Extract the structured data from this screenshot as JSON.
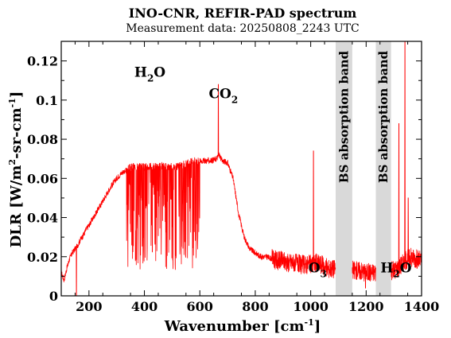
{
  "chart_data": {
    "type": "line",
    "title": "INO-CNR, REFIR-PAD spectrum",
    "subtitle": "Measurement data: 20250808_2243 UTC",
    "xlabel": {
      "main": "Wavenumber [cm",
      "sup": "-1",
      "tail": "]"
    },
    "ylabel": {
      "p1": "DLR [W/m",
      "s1": "2",
      "p2": "-sr-cm",
      "s2": "-1",
      "p3": "]"
    },
    "xlim": [
      100,
      1400
    ],
    "ylim": [
      0,
      0.13
    ],
    "x_ticks": [
      "200",
      "400",
      "600",
      "800",
      "1000",
      "1200",
      "1400"
    ],
    "y_ticks": [
      "0",
      "0.02",
      "0.04",
      "0.06",
      "0.08",
      "0.1",
      "0.12"
    ],
    "x_tick_values": [
      200,
      400,
      600,
      800,
      1000,
      1200,
      1400
    ],
    "y_tick_values": [
      0,
      0.02,
      0.04,
      0.06,
      0.08,
      0.1,
      0.12
    ],
    "grid": false,
    "line_color": "#ff0000",
    "band_color": "#d9d9d9",
    "shaded_bands": [
      {
        "label": "BS absorption band",
        "x_range": [
          1090,
          1150
        ]
      },
      {
        "label": "BS absorption band",
        "x_range": [
          1235,
          1290
        ]
      }
    ],
    "annotations": [
      {
        "base": "H",
        "sub": "2",
        "tail": "O",
        "x": 420,
        "y": 0.112
      },
      {
        "base": "CO",
        "sub": "2",
        "tail": "",
        "x": 685,
        "y": 0.101
      },
      {
        "base": "O",
        "sub": "3",
        "tail": "",
        "x": 1025,
        "y": 0.012
      },
      {
        "base": "H",
        "sub": "2",
        "tail": "O",
        "x": 1308,
        "y": 0.012
      }
    ],
    "series": [
      {
        "x": [
          100,
          110,
          120,
          130,
          140,
          150,
          160,
          170,
          180,
          190,
          200,
          220,
          240,
          260,
          280,
          300,
          320,
          340,
          360,
          380,
          400,
          420,
          440,
          460,
          480,
          500,
          520,
          540,
          560,
          580,
          600,
          620,
          640,
          660,
          670,
          680,
          700,
          720,
          740,
          760,
          780,
          800,
          820,
          840,
          860,
          880,
          900,
          920,
          940,
          960,
          980,
          1000,
          1020,
          1040,
          1060,
          1080,
          1160,
          1180,
          1200,
          1220,
          1300,
          1320,
          1340,
          1360,
          1380,
          1400
        ],
        "y": [
          0.012,
          0.008,
          0.014,
          0.019,
          0.022,
          0.024,
          0.026,
          0.029,
          0.031,
          0.034,
          0.036,
          0.041,
          0.046,
          0.051,
          0.056,
          0.06,
          0.063,
          0.065,
          0.066,
          0.066,
          0.066,
          0.066,
          0.066,
          0.066,
          0.066,
          0.066,
          0.066,
          0.067,
          0.068,
          0.069,
          0.069,
          0.069,
          0.069,
          0.07,
          0.072,
          0.069,
          0.068,
          0.06,
          0.042,
          0.03,
          0.024,
          0.022,
          0.02,
          0.02,
          0.019,
          0.018,
          0.018,
          0.017,
          0.017,
          0.016,
          0.016,
          0.016,
          0.017,
          0.016,
          0.014,
          0.014,
          0.013,
          0.013,
          0.012,
          0.012,
          0.013,
          0.015,
          0.018,
          0.02,
          0.019,
          0.018
        ]
      }
    ],
    "peaks": [
      {
        "x": 667,
        "y": 0.108
      },
      {
        "x": 1010,
        "y": 0.074
      },
      {
        "x": 1340,
        "y": 0.13
      },
      {
        "x": 1318,
        "y": 0.088
      },
      {
        "x": 1352,
        "y": 0.05
      },
      {
        "x": 155,
        "y": 0.0
      },
      {
        "x": 1198,
        "y": 0.004
      }
    ]
  }
}
